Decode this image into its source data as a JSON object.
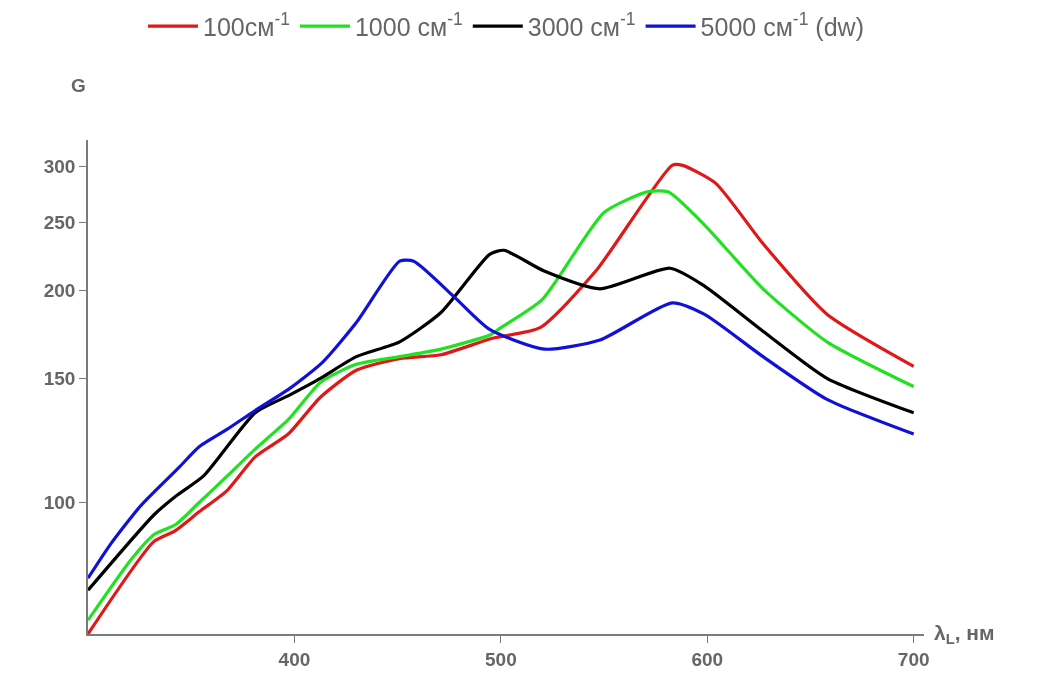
{
  "chart_data": {
    "type": "line",
    "xlabel": "λ$_{L}$, нм",
    "ylabel": "G",
    "log": "y",
    "legend": "top",
    "marker": "none",
    "line_style": "solid",
    "xlim": [
      300,
      705
    ],
    "xticks": [
      400,
      500,
      600,
      700
    ],
    "ylim": [
      65,
      327
    ],
    "yticks": [
      100,
      150,
      200,
      250,
      300
    ],
    "series": [
      {
        "name": "100см$^{-1}$",
        "color": "#e01818",
        "x": [
          300,
          332,
          342,
          354,
          367.5,
          381,
          397,
          412.6,
          430,
          451,
          471,
          496,
          519,
          546,
          583,
          588,
          604,
          627,
          658,
          700
        ],
        "values": [
          65,
          88,
          91,
          97,
          104,
          116,
          125,
          141,
          154,
          160,
          162,
          171,
          177,
          213,
          301,
          301,
          284,
          233,
          185,
          156
        ]
      },
      {
        "name": "1000 см$^{-1}$",
        "color": "#22e022",
        "x": [
          300,
          321,
          332,
          342.5,
          354,
          367.5,
          381,
          397,
          412.6,
          430,
          451,
          471,
          495,
          500,
          520,
          550,
          571,
          581,
          598.5,
          627,
          658,
          700
        ],
        "values": [
          68,
          83,
          90,
          93,
          100,
          109,
          119,
          131,
          148,
          157,
          161,
          165,
          173,
          177,
          194,
          258,
          276,
          276,
          248,
          201,
          169,
          146
        ]
      },
      {
        "name": "3000 см$^{-1}$",
        "color": "#000000",
        "x": [
          300,
          332,
          342.5,
          356,
          381,
          397.6,
          412.6,
          430,
          451,
          471,
          494.6,
          501.5,
          521,
          548,
          582,
          598.5,
          627,
          658,
          700
        ],
        "values": [
          75,
          96,
          102,
          109,
          134,
          142,
          150,
          161,
          169,
          186,
          225,
          228,
          213,
          201,
          215,
          203,
          175,
          150,
          134
        ]
      },
      {
        "name": "5000 см$^{-1}$ (dw)",
        "color": "#1010d8",
        "x": [
          300,
          310.7,
          325.7,
          344,
          354,
          367.5,
          381,
          397.6,
          413.6,
          430,
          451,
          457.8,
          478,
          494.6,
          521,
          548,
          583,
          598.5,
          627,
          658,
          700
        ],
        "values": [
          78,
          87,
          99,
          112,
          120,
          127,
          135,
          145,
          158,
          180,
          220,
          220,
          195,
          176,
          165,
          170,
          192,
          185,
          161,
          140,
          125
        ]
      }
    ]
  }
}
